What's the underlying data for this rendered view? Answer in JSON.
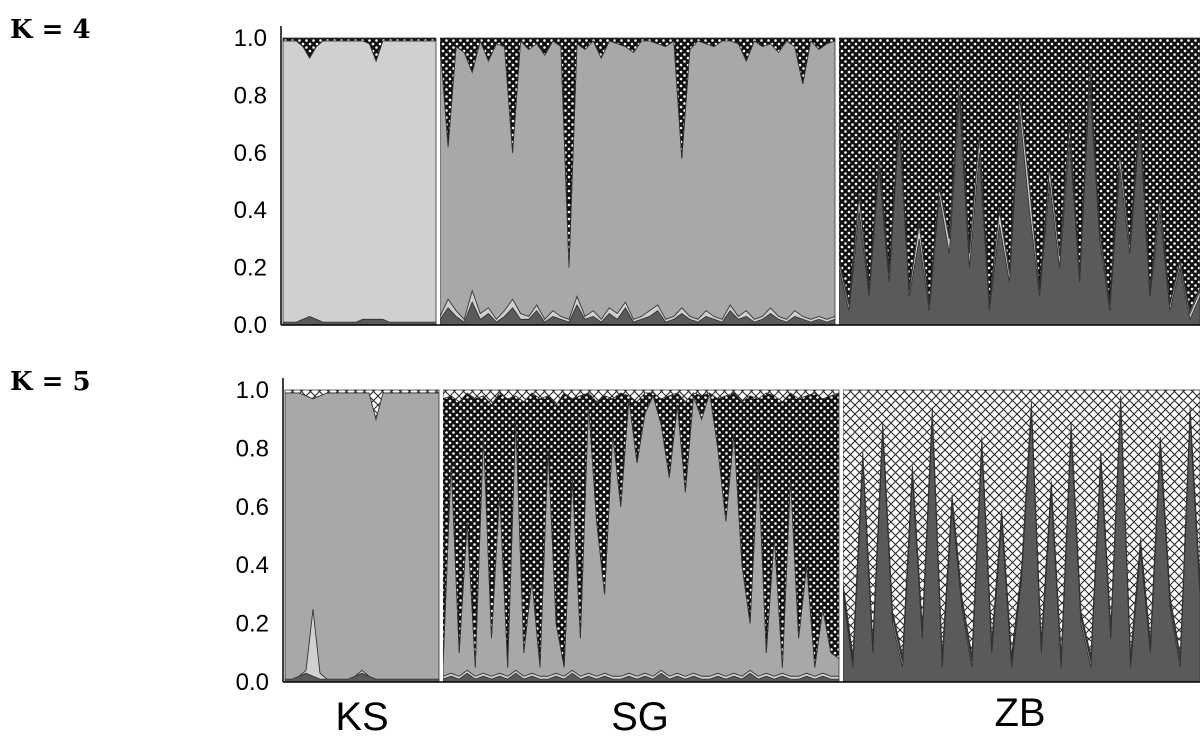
{
  "chart_data": [
    {
      "type": "area",
      "panel_label": "K = 4",
      "ylim": [
        0,
        1.0
      ],
      "yticks": [
        "1.0",
        "0.8",
        "0.6",
        "0.4",
        "0.2",
        "0.0"
      ],
      "groups": [
        "KS",
        "SG",
        "ZB"
      ],
      "series_colors": [
        "#5a5a5a",
        "#d0d0d0",
        "#a8a8a8",
        "dotted"
      ],
      "segments": [
        {
          "group": "KS",
          "cum": [
            [
              0.01,
              0.01,
              0.01,
              0.02,
              0.03,
              0.02,
              0.01,
              0.01,
              0.01,
              0.01,
              0.01,
              0.01,
              0.02,
              0.02,
              0.02,
              0.02,
              0.01,
              0.01,
              0.01,
              0.01,
              0.01,
              0.01,
              0.01,
              0.01
            ],
            [
              0.99,
              0.99,
              0.99,
              0.97,
              0.93,
              0.97,
              0.99,
              0.99,
              0.99,
              0.99,
              0.99,
              0.99,
              0.99,
              0.98,
              0.92,
              0.99,
              0.99,
              0.99,
              0.99,
              0.99,
              0.99,
              0.99,
              0.99,
              0.99
            ],
            [
              0.99,
              0.99,
              0.99,
              0.97,
              0.93,
              0.97,
              0.99,
              0.99,
              0.99,
              0.99,
              0.99,
              0.99,
              0.99,
              0.98,
              0.92,
              0.99,
              0.99,
              0.99,
              0.99,
              0.99,
              0.99,
              0.99,
              0.99,
              0.99
            ]
          ]
        },
        {
          "group": "SG",
          "cum": [
            [
              0.02,
              0.06,
              0.03,
              0.01,
              0.08,
              0.02,
              0.04,
              0.01,
              0.03,
              0.06,
              0.02,
              0.02,
              0.05,
              0.01,
              0.03,
              0.02,
              0.01,
              0.07,
              0.02,
              0.03,
              0.01,
              0.04,
              0.02,
              0.06,
              0.01,
              0.02,
              0.03,
              0.05,
              0.01,
              0.02,
              0.04,
              0.02,
              0.01,
              0.03,
              0.02,
              0.01,
              0.05,
              0.02,
              0.03,
              0.01,
              0.02,
              0.04,
              0.02,
              0.01,
              0.03,
              0.02,
              0.01,
              0.02,
              0.01,
              0.02
            ],
            [
              0.03,
              0.09,
              0.05,
              0.02,
              0.12,
              0.04,
              0.06,
              0.02,
              0.05,
              0.09,
              0.04,
              0.03,
              0.07,
              0.02,
              0.05,
              0.03,
              0.02,
              0.1,
              0.03,
              0.05,
              0.02,
              0.06,
              0.04,
              0.08,
              0.02,
              0.03,
              0.05,
              0.07,
              0.02,
              0.03,
              0.06,
              0.03,
              0.02,
              0.05,
              0.03,
              0.02,
              0.07,
              0.03,
              0.05,
              0.02,
              0.03,
              0.06,
              0.03,
              0.02,
              0.05,
              0.03,
              0.02,
              0.03,
              0.02,
              0.03
            ],
            [
              0.98,
              0.62,
              0.97,
              0.95,
              0.88,
              0.99,
              0.92,
              0.98,
              0.97,
              0.6,
              0.99,
              0.96,
              0.98,
              0.94,
              0.99,
              0.97,
              0.2,
              0.98,
              0.96,
              0.99,
              0.93,
              0.99,
              0.98,
              0.97,
              0.95,
              0.99,
              0.99,
              0.98,
              0.97,
              0.99,
              0.58,
              0.96,
              0.99,
              0.98,
              0.97,
              0.99,
              0.99,
              0.98,
              0.92,
              0.99,
              0.97,
              0.98,
              0.95,
              0.99,
              0.97,
              0.84,
              0.99,
              0.96,
              0.98,
              0.99
            ]
          ]
        },
        {
          "group": "ZB",
          "cum": [
            [
              0.2,
              0.05,
              0.4,
              0.1,
              0.55,
              0.15,
              0.7,
              0.1,
              0.3,
              0.05,
              0.45,
              0.25,
              0.8,
              0.2,
              0.6,
              0.05,
              0.35,
              0.15,
              0.75,
              0.4,
              0.1,
              0.5,
              0.2,
              0.65,
              0.15,
              0.85,
              0.3,
              0.05,
              0.55,
              0.25,
              0.7,
              0.1,
              0.4,
              0.05,
              0.2,
              0.02,
              0.1
            ],
            [
              0.22,
              0.07,
              0.45,
              0.12,
              0.58,
              0.18,
              0.72,
              0.12,
              0.35,
              0.07,
              0.48,
              0.3,
              0.85,
              0.25,
              0.66,
              0.07,
              0.4,
              0.18,
              0.8,
              0.48,
              0.12,
              0.55,
              0.24,
              0.7,
              0.17,
              0.9,
              0.33,
              0.07,
              0.6,
              0.28,
              0.74,
              0.12,
              0.44,
              0.07,
              0.22,
              0.04,
              0.12
            ],
            [
              0.23,
              0.08,
              0.46,
              0.13,
              0.59,
              0.19,
              0.73,
              0.13,
              0.36,
              0.08,
              0.49,
              0.31,
              0.86,
              0.26,
              0.67,
              0.08,
              0.41,
              0.19,
              0.81,
              0.49,
              0.13,
              0.56,
              0.25,
              0.71,
              0.18,
              0.91,
              0.34,
              0.08,
              0.61,
              0.29,
              0.75,
              0.13,
              0.45,
              0.08,
              0.23,
              0.05,
              0.13
            ]
          ]
        }
      ]
    },
    {
      "type": "area",
      "panel_label": "K = 5",
      "ylim": [
        0,
        1.0
      ],
      "yticks": [
        "1.0",
        "0.8",
        "0.6",
        "0.4",
        "0.2",
        "0.0"
      ],
      "groups": [
        "KS",
        "SG",
        "ZB"
      ],
      "series_colors": [
        "#5a5a5a",
        "#d0d0d0",
        "#a8a8a8",
        "dotted",
        "crosshatch"
      ],
      "segments": [
        {
          "group": "KS",
          "cum": [
            [
              0.01,
              0.01,
              0.02,
              0.03,
              0.02,
              0.01,
              0.01,
              0.01,
              0.01,
              0.01,
              0.02,
              0.03,
              0.02,
              0.01,
              0.01,
              0.01,
              0.01,
              0.01,
              0.01,
              0.01,
              0.01,
              0.01,
              0.01
            ],
            [
              0.01,
              0.01,
              0.02,
              0.04,
              0.25,
              0.03,
              0.01,
              0.01,
              0.01,
              0.01,
              0.02,
              0.04,
              0.02,
              0.01,
              0.01,
              0.01,
              0.01,
              0.01,
              0.01,
              0.01,
              0.01,
              0.01,
              0.01
            ],
            [
              0.99,
              0.99,
              0.99,
              0.98,
              0.97,
              0.98,
              0.99,
              0.99,
              0.99,
              0.99,
              0.99,
              0.99,
              0.99,
              0.9,
              0.99,
              0.99,
              0.99,
              0.99,
              0.99,
              0.99,
              0.99,
              0.99,
              0.99
            ],
            [
              0.99,
              0.99,
              0.99,
              0.98,
              0.97,
              0.98,
              0.99,
              0.99,
              0.99,
              0.99,
              0.99,
              0.99,
              0.99,
              0.9,
              0.99,
              0.99,
              0.99,
              0.99,
              0.99,
              0.99,
              0.99,
              0.99,
              0.99
            ]
          ]
        },
        {
          "group": "SG",
          "cum": [
            [
              0.01,
              0.02,
              0.01,
              0.03,
              0.01,
              0.02,
              0.01,
              0.02,
              0.01,
              0.03,
              0.01,
              0.02,
              0.01,
              0.01,
              0.02,
              0.01,
              0.03,
              0.01,
              0.02,
              0.01,
              0.02,
              0.01,
              0.01,
              0.02,
              0.01,
              0.02,
              0.01,
              0.03,
              0.01,
              0.02,
              0.01,
              0.02,
              0.01,
              0.01,
              0.02,
              0.01,
              0.02,
              0.01,
              0.03,
              0.01,
              0.02,
              0.01,
              0.02,
              0.01,
              0.01,
              0.02,
              0.01,
              0.02,
              0.01,
              0.01
            ],
            [
              0.02,
              0.03,
              0.02,
              0.04,
              0.02,
              0.03,
              0.02,
              0.03,
              0.02,
              0.04,
              0.02,
              0.03,
              0.02,
              0.02,
              0.03,
              0.02,
              0.04,
              0.02,
              0.03,
              0.02,
              0.03,
              0.02,
              0.02,
              0.03,
              0.02,
              0.03,
              0.02,
              0.04,
              0.02,
              0.03,
              0.02,
              0.03,
              0.02,
              0.02,
              0.03,
              0.02,
              0.03,
              0.02,
              0.04,
              0.02,
              0.03,
              0.02,
              0.03,
              0.02,
              0.02,
              0.03,
              0.02,
              0.03,
              0.02,
              0.02
            ],
            [
              0.05,
              0.75,
              0.1,
              0.55,
              0.05,
              0.85,
              0.15,
              0.65,
              0.05,
              0.9,
              0.1,
              0.35,
              0.05,
              0.8,
              0.2,
              0.05,
              0.7,
              0.15,
              0.95,
              0.55,
              0.3,
              0.85,
              0.6,
              0.97,
              0.75,
              0.92,
              0.98,
              0.88,
              0.7,
              0.95,
              0.65,
              0.98,
              0.9,
              0.99,
              0.8,
              0.55,
              0.85,
              0.4,
              0.2,
              0.75,
              0.1,
              0.5,
              0.05,
              0.7,
              0.15,
              0.4,
              0.05,
              0.25,
              0.1,
              0.08
            ],
            [
              0.97,
              0.98,
              0.96,
              0.99,
              0.97,
              0.98,
              0.95,
              0.99,
              0.97,
              0.98,
              0.96,
              0.99,
              0.97,
              0.98,
              0.95,
              0.99,
              0.97,
              0.98,
              0.99,
              0.96,
              0.98,
              0.97,
              0.99,
              0.98,
              0.96,
              0.99,
              0.99,
              0.97,
              0.98,
              0.99,
              0.96,
              0.99,
              0.98,
              0.99,
              0.97,
              0.98,
              0.99,
              0.96,
              0.98,
              0.97,
              0.99,
              0.98,
              0.96,
              0.99,
              0.97,
              0.98,
              0.99,
              0.97,
              0.98,
              0.99
            ]
          ]
        },
        {
          "group": "ZB",
          "cum": [
            [
              0.3,
              0.05,
              0.75,
              0.1,
              0.85,
              0.2,
              0.05,
              0.7,
              0.15,
              0.9,
              0.05,
              0.6,
              0.25,
              0.05,
              0.8,
              0.1,
              0.55,
              0.05,
              0.35,
              0.92,
              0.1,
              0.65,
              0.05,
              0.85,
              0.2,
              0.05,
              0.75,
              0.15,
              0.95,
              0.05,
              0.45,
              0.1,
              0.8,
              0.25,
              0.05,
              0.9,
              0.3
            ],
            [
              0.32,
              0.07,
              0.77,
              0.12,
              0.87,
              0.22,
              0.07,
              0.72,
              0.17,
              0.92,
              0.07,
              0.62,
              0.27,
              0.07,
              0.82,
              0.12,
              0.57,
              0.07,
              0.37,
              0.94,
              0.12,
              0.67,
              0.07,
              0.87,
              0.22,
              0.07,
              0.77,
              0.17,
              0.96,
              0.07,
              0.47,
              0.12,
              0.82,
              0.27,
              0.07,
              0.92,
              0.32
            ],
            [
              0.33,
              0.08,
              0.78,
              0.13,
              0.88,
              0.23,
              0.08,
              0.73,
              0.18,
              0.93,
              0.08,
              0.63,
              0.28,
              0.08,
              0.83,
              0.13,
              0.58,
              0.08,
              0.38,
              0.95,
              0.13,
              0.68,
              0.08,
              0.88,
              0.23,
              0.08,
              0.78,
              0.18,
              0.97,
              0.08,
              0.48,
              0.13,
              0.83,
              0.28,
              0.08,
              0.93,
              0.33
            ],
            [
              0.34,
              0.09,
              0.79,
              0.14,
              0.89,
              0.24,
              0.09,
              0.74,
              0.19,
              0.94,
              0.09,
              0.64,
              0.29,
              0.09,
              0.84,
              0.14,
              0.59,
              0.09,
              0.39,
              0.96,
              0.14,
              0.69,
              0.09,
              0.89,
              0.24,
              0.09,
              0.79,
              0.19,
              0.98,
              0.09,
              0.49,
              0.14,
              0.84,
              0.29,
              0.09,
              0.94,
              0.34
            ]
          ]
        }
      ]
    }
  ]
}
